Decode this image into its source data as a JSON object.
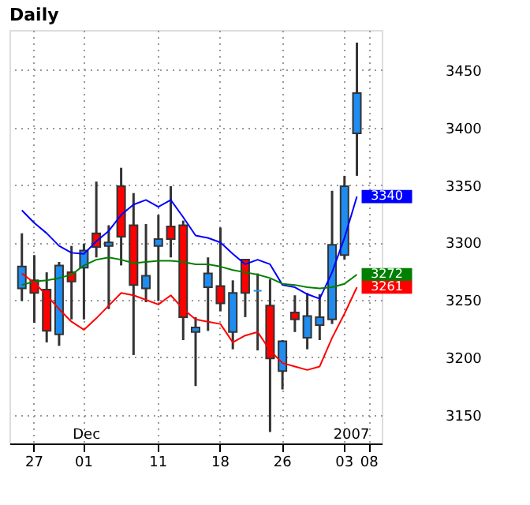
{
  "chart_data": {
    "type": "candlestick",
    "title": "Daily",
    "categories": [
      null,
      "27",
      null,
      null,
      null,
      "01",
      null,
      null,
      null,
      null,
      null,
      "11",
      null,
      null,
      null,
      null,
      "18",
      null,
      null,
      null,
      null,
      "26",
      null,
      null,
      null,
      null,
      "03",
      null,
      "08"
    ],
    "ohlc": [
      [
        3260,
        3308,
        3249,
        3279
      ],
      [
        3267,
        3289,
        3230,
        3256
      ],
      [
        3259,
        3274,
        3213,
        3223
      ],
      [
        3220,
        3283,
        3210,
        3280
      ],
      [
        3274,
        3297,
        3233,
        3266
      ],
      [
        3278,
        3299,
        3233,
        3293
      ],
      [
        3308,
        3353,
        3287,
        3296
      ],
      [
        3297,
        3315,
        3242,
        3300
      ],
      [
        3349,
        3365,
        3280,
        3305
      ],
      [
        3315,
        3343,
        3202,
        3263
      ],
      [
        3260,
        3316,
        3248,
        3271
      ],
      [
        3297,
        3324,
        3249,
        3303
      ],
      [
        3314,
        3349,
        3287,
        3303
      ],
      [
        3315,
        3319,
        3215,
        3235
      ],
      [
        3222,
        3235,
        3175,
        3226
      ],
      [
        3261,
        3287,
        3223,
        3273
      ],
      [
        3262,
        3313,
        3240,
        3247
      ],
      [
        3222,
        3267,
        3207,
        3256
      ],
      [
        3285,
        3285,
        3235,
        3256
      ],
      [
        3258,
        3273,
        3206,
        3258
      ],
      [
        3245,
        3268,
        3135,
        3199
      ],
      [
        3188,
        3215,
        3172,
        3214
      ],
      [
        3239,
        3254,
        3222,
        3233
      ],
      [
        3217,
        3256,
        3207,
        3236
      ],
      [
        3228,
        3255,
        3215,
        3235
      ],
      [
        3233,
        3345,
        3229,
        3298
      ],
      [
        3289,
        3358,
        3285,
        3349
      ],
      [
        3395,
        3474,
        3358,
        3430
      ],
      null
    ],
    "colors": [
      "#1e8cf0",
      "#ff0000",
      "#ff0000",
      "#1e8cf0",
      "#ff0000",
      "#1e8cf0",
      "#ff0000",
      "#1e8cf0",
      "#ff0000",
      "#ff0000",
      "#1e8cf0",
      "#1e8cf0",
      "#ff0000",
      "#ff0000",
      "#1e8cf0",
      "#1e8cf0",
      "#ff0000",
      "#1e8cf0",
      "#ff0000",
      "#1e8cf0",
      "#ff0000",
      "#1e8cf0",
      "#ff0000",
      "#1e8cf0",
      "#1e8cf0",
      "#1e8cf0",
      "#1e8cf0",
      "#1e8cf0",
      null
    ],
    "series": [
      {
        "type": "line",
        "color": "#0000ff",
        "values": [
          3328,
          3317,
          3308,
          3297,
          3291,
          3290,
          3301,
          3310,
          3324,
          3333,
          3337,
          3331,
          3337,
          3322,
          3306,
          3304,
          3300,
          3290,
          3281,
          3285,
          3281,
          3263,
          3261,
          3255,
          3251,
          3274,
          3304,
          3340,
          null
        ],
        "value_labels": [
          null,
          null,
          null,
          null,
          null,
          null,
          null,
          null,
          null,
          null,
          null,
          null,
          null,
          null,
          null,
          null,
          null,
          null,
          null,
          null,
          null,
          null,
          null,
          null,
          null,
          null,
          null,
          "3340",
          null
        ]
      },
      {
        "type": "line",
        "color": "#008000",
        "values": [
          3263,
          3266,
          3267,
          3269,
          3272,
          3280,
          3285,
          3287,
          3285,
          3282,
          3283,
          3284,
          3284,
          3283,
          3281,
          3281,
          3279,
          3276,
          3274,
          3272,
          3269,
          3264,
          3263,
          3261,
          3260,
          3261,
          3264,
          3272,
          null
        ],
        "value_labels": [
          null,
          null,
          null,
          null,
          null,
          null,
          null,
          null,
          null,
          null,
          null,
          null,
          null,
          null,
          null,
          null,
          null,
          null,
          null,
          null,
          null,
          null,
          null,
          null,
          null,
          null,
          null,
          "3272",
          null
        ]
      },
      {
        "type": "line",
        "color": "#ff0000",
        "values": [
          3273,
          3265,
          3254,
          3242,
          3231,
          3224,
          3234,
          3245,
          3256,
          3254,
          3250,
          3246,
          3254,
          3242,
          3233,
          3231,
          3229,
          3213,
          3219,
          3222,
          3206,
          3195,
          3192,
          3189,
          3192,
          3217,
          3238,
          3261,
          null
        ],
        "value_labels": [
          null,
          null,
          null,
          null,
          null,
          null,
          null,
          null,
          null,
          null,
          null,
          null,
          null,
          null,
          null,
          null,
          null,
          null,
          null,
          null,
          null,
          null,
          null,
          null,
          null,
          null,
          null,
          "3261",
          null
        ]
      }
    ],
    "annotations": [
      "Dec",
      "2007"
    ],
    "ylim": [
      3125,
      3485
    ],
    "yticks": [
      3150,
      3200,
      3250,
      3300,
      3350,
      3400,
      3450
    ],
    "grid": true
  }
}
